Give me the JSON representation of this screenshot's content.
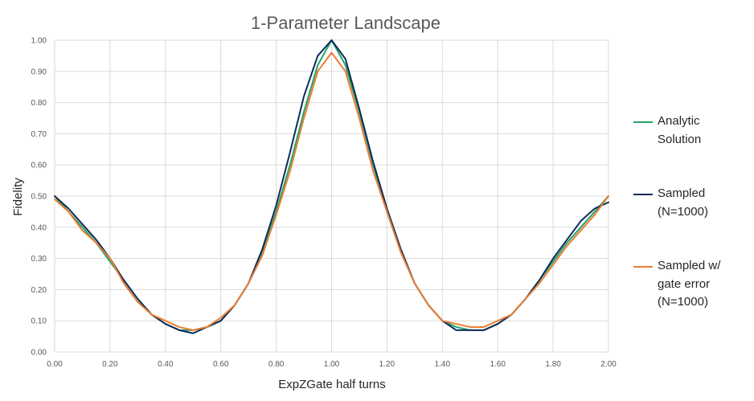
{
  "chart_data": {
    "type": "line",
    "title": "1-Parameter Landscape",
    "xlabel": "ExpZGate half turns",
    "ylabel": "Fidelity",
    "xlim": [
      0,
      2
    ],
    "ylim": [
      0,
      1
    ],
    "x_ticks": [
      "0.00",
      "0.20",
      "0.40",
      "0.60",
      "0.80",
      "1.00",
      "1.20",
      "1.40",
      "1.60",
      "1.80",
      "2.00"
    ],
    "y_ticks": [
      "0.00",
      "0.10",
      "0.20",
      "0.30",
      "0.40",
      "0.50",
      "0.60",
      "0.70",
      "0.80",
      "0.90",
      "1.00"
    ],
    "grid": true,
    "legend_position": "right",
    "x": [
      0.0,
      0.05,
      0.1,
      0.15,
      0.2,
      0.25,
      0.3,
      0.35,
      0.4,
      0.45,
      0.5,
      0.55,
      0.6,
      0.65,
      0.7,
      0.75,
      0.8,
      0.85,
      0.9,
      0.95,
      1.0,
      1.05,
      1.1,
      1.15,
      1.2,
      1.25,
      1.3,
      1.35,
      1.4,
      1.45,
      1.5,
      1.55,
      1.6,
      1.65,
      1.7,
      1.75,
      1.8,
      1.85,
      1.9,
      1.95,
      2.0
    ],
    "series": [
      {
        "name": "Analytic Solution",
        "color": "#22a46a",
        "values": [
          0.5,
          0.45,
          0.4,
          0.35,
          0.29,
          0.23,
          0.17,
          0.12,
          0.09,
          0.07,
          0.07,
          0.08,
          0.1,
          0.15,
          0.22,
          0.32,
          0.45,
          0.6,
          0.77,
          0.92,
          1.0,
          0.92,
          0.77,
          0.6,
          0.45,
          0.32,
          0.22,
          0.15,
          0.1,
          0.08,
          0.07,
          0.07,
          0.09,
          0.12,
          0.17,
          0.23,
          0.29,
          0.35,
          0.4,
          0.45,
          0.5
        ]
      },
      {
        "name": "Sampled (N=1000)",
        "color": "#0e2c5c",
        "values": [
          0.5,
          0.46,
          0.41,
          0.36,
          0.3,
          0.23,
          0.17,
          0.12,
          0.09,
          0.07,
          0.06,
          0.08,
          0.1,
          0.15,
          0.22,
          0.33,
          0.47,
          0.64,
          0.82,
          0.95,
          1.0,
          0.94,
          0.78,
          0.61,
          0.46,
          0.33,
          0.22,
          0.15,
          0.1,
          0.07,
          0.07,
          0.07,
          0.09,
          0.12,
          0.17,
          0.23,
          0.3,
          0.36,
          0.42,
          0.46,
          0.48
        ]
      },
      {
        "name": "Sampled w/ gate error (N=1000)",
        "color": "#ec7d31",
        "values": [
          0.49,
          0.45,
          0.39,
          0.35,
          0.3,
          0.22,
          0.16,
          0.12,
          0.1,
          0.08,
          0.07,
          0.08,
          0.11,
          0.15,
          0.22,
          0.31,
          0.44,
          0.58,
          0.75,
          0.9,
          0.96,
          0.9,
          0.75,
          0.58,
          0.45,
          0.32,
          0.22,
          0.15,
          0.1,
          0.09,
          0.08,
          0.08,
          0.1,
          0.12,
          0.17,
          0.22,
          0.28,
          0.34,
          0.39,
          0.44,
          0.5
        ]
      }
    ]
  },
  "legend": {
    "items": [
      {
        "label": "Analytic\nSolution"
      },
      {
        "label": "Sampled\n(N=1000)"
      },
      {
        "label": "Sampled w/\ngate error\n(N=1000)"
      }
    ]
  }
}
